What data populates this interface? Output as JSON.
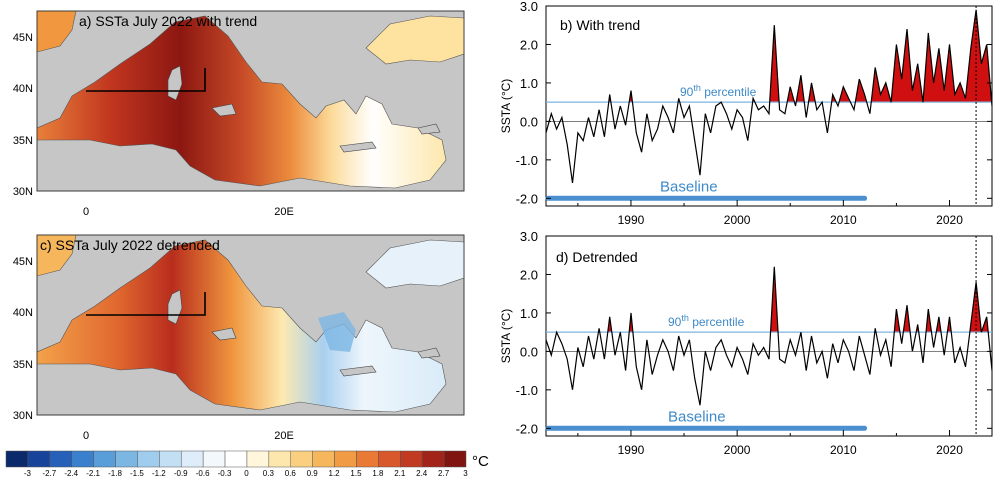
{
  "maps": [
    {
      "id": "a",
      "title": "a) SSTa July 2022 with trend",
      "lat_ticks": [
        "45N",
        "40N",
        "35N",
        "30N"
      ],
      "lon_ticks": [
        "0",
        "20E"
      ]
    },
    {
      "id": "c",
      "title": "c) SSTa July 2022 detrended",
      "lat_ticks": [
        "45N",
        "40N",
        "35N",
        "30N"
      ],
      "lon_ticks": [
        "0",
        "20E"
      ]
    }
  ],
  "colorbar": {
    "unit": "°C",
    "labels": [
      "-3",
      "-2.7",
      "-2.4",
      "-2.1",
      "-1.8",
      "-1.5",
      "-1.2",
      "-0.9",
      "-0.6",
      "-0.3",
      "0",
      "0.3",
      "0.6",
      "0.9",
      "1.2",
      "1.5",
      "1.8",
      "2.1",
      "2.4",
      "2.7",
      "3"
    ],
    "colors": [
      "#0b2a6b",
      "#17449a",
      "#2660b8",
      "#3a80cc",
      "#5a9ed9",
      "#7cb7e4",
      "#a0cdee",
      "#c2dff4",
      "#deedf9",
      "#f3f8fc",
      "#ffffff",
      "#fff6dc",
      "#fde7ac",
      "#fad080",
      "#f6b65c",
      "#f19b45",
      "#e87a36",
      "#d8572b",
      "#c13a22",
      "#a22319",
      "#801410"
    ]
  },
  "colors": {
    "accent_blue": "#4a8fd0",
    "exceed_red": "#d01010",
    "land": "#c6c6c6"
  },
  "chart_data": [
    {
      "type": "line",
      "panel": "b",
      "title": "b)  With trend",
      "ylabel": "SSTA (°C)",
      "xlim": [
        1982,
        2024
      ],
      "ylim": [
        -2.2,
        3.0
      ],
      "yticks": [
        "3.0",
        "2.0",
        "1.0",
        "0.0",
        "-1.0",
        "-2.0"
      ],
      "xticks": [
        "1990",
        "2000",
        "2010",
        "2020"
      ],
      "percentile_label": "90th percentile",
      "percentile_value": 0.5,
      "baseline_label": "Baseline",
      "baseline_period": [
        1982,
        2012
      ],
      "event_marker_x": 2022.5,
      "series": [
        {
          "x": [
            1982,
            1982.5,
            1983,
            1983.5,
            1984,
            1984.5,
            1985,
            1985.5,
            1986,
            1986.5,
            1987,
            1987.5,
            1988,
            1988.5,
            1989,
            1989.5,
            1990,
            1990.5,
            1991,
            1991.5,
            1992,
            1992.5,
            1993,
            1993.5,
            1994,
            1994.5,
            1995,
            1995.5,
            1996,
            1996.5,
            1997,
            1997.5,
            1998,
            1998.5,
            1999,
            1999.5,
            2000,
            2000.5,
            2001,
            2001.5,
            2002,
            2002.5,
            2003,
            2003.5,
            2004,
            2004.5,
            2005,
            2005.5,
            2006,
            2006.5,
            2007,
            2007.5,
            2008,
            2008.5,
            2009,
            2009.5,
            2010,
            2010.5,
            2011,
            2011.5,
            2012,
            2012.5,
            2013,
            2013.5,
            2014,
            2014.5,
            2015,
            2015.5,
            2016,
            2016.5,
            2017,
            2017.5,
            2018,
            2018.5,
            2019,
            2019.5,
            2020,
            2020.5,
            2021,
            2021.5,
            2022,
            2022.5,
            2023,
            2023.5,
            2024
          ],
          "values": [
            -0.3,
            0.2,
            -0.2,
            0.1,
            -0.6,
            -1.6,
            -0.3,
            -0.5,
            0.1,
            -0.4,
            0.3,
            -0.4,
            0.7,
            -0.2,
            0.4,
            -0.1,
            0.8,
            -0.3,
            -0.8,
            0.2,
            -0.5,
            -0.2,
            0.4,
            0.1,
            -0.3,
            0.6,
            0.1,
            0.4,
            -0.5,
            -1.4,
            0.2,
            -0.3,
            0.4,
            0.5,
            0.2,
            -0.2,
            0.3,
            0.1,
            -0.5,
            0.6,
            0.3,
            0.4,
            0.2,
            2.5,
            0.3,
            0.2,
            0.9,
            0.4,
            1.2,
            0.1,
            1.0,
            0.3,
            0.5,
            -0.3,
            0.7,
            0.4,
            0.9,
            0.6,
            0.3,
            1.1,
            0.7,
            0.2,
            1.4,
            0.7,
            1.0,
            0.5,
            2.0,
            1.1,
            2.4,
            0.8,
            1.5,
            0.5,
            2.3,
            1.0,
            1.9,
            0.8,
            2.0,
            0.7,
            1.0,
            0.6,
            1.9,
            2.9,
            1.5,
            2.0,
            0.4
          ]
        }
      ]
    },
    {
      "type": "line",
      "panel": "d",
      "title": "d)  Detrended",
      "ylabel": "SSTA (°C)",
      "xlim": [
        1982,
        2024
      ],
      "ylim": [
        -2.2,
        3.0
      ],
      "yticks": [
        "3.0",
        "2.0",
        "1.0",
        "0.0",
        "-1.0",
        "-2.0"
      ],
      "xticks": [
        "1990",
        "2000",
        "2010",
        "2020"
      ],
      "percentile_label": "90th percentile",
      "percentile_value": 0.5,
      "baseline_label": "Baseline",
      "baseline_period": [
        1982,
        2012
      ],
      "event_marker_x": 2022.5,
      "series": [
        {
          "x": [
            1982,
            1982.5,
            1983,
            1983.5,
            1984,
            1984.5,
            1985,
            1985.5,
            1986,
            1986.5,
            1987,
            1987.5,
            1988,
            1988.5,
            1989,
            1989.5,
            1990,
            1990.5,
            1991,
            1991.5,
            1992,
            1992.5,
            1993,
            1993.5,
            1994,
            1994.5,
            1995,
            1995.5,
            1996,
            1996.5,
            1997,
            1997.5,
            1998,
            1998.5,
            1999,
            1999.5,
            2000,
            2000.5,
            2001,
            2001.5,
            2002,
            2002.5,
            2003,
            2003.5,
            2004,
            2004.5,
            2005,
            2005.5,
            2006,
            2006.5,
            2007,
            2007.5,
            2008,
            2008.5,
            2009,
            2009.5,
            2010,
            2010.5,
            2011,
            2011.5,
            2012,
            2012.5,
            2013,
            2013.5,
            2014,
            2014.5,
            2015,
            2015.5,
            2016,
            2016.5,
            2017,
            2017.5,
            2018,
            2018.5,
            2019,
            2019.5,
            2020,
            2020.5,
            2021,
            2021.5,
            2022,
            2022.5,
            2023,
            2023.5,
            2024
          ],
          "values": [
            0.3,
            -0.1,
            0.5,
            0.2,
            -0.2,
            -1.0,
            0.1,
            -0.4,
            0.4,
            -0.2,
            0.6,
            -0.2,
            0.9,
            -0.1,
            0.5,
            -0.5,
            1.0,
            -0.4,
            -1.0,
            0.3,
            -0.6,
            -0.1,
            0.3,
            0.0,
            -0.5,
            0.4,
            -0.1,
            0.3,
            -0.7,
            -1.4,
            0.0,
            -0.5,
            0.1,
            0.3,
            -0.1,
            -0.4,
            0.1,
            -0.2,
            -0.6,
            0.2,
            -0.1,
            0.1,
            -0.2,
            2.2,
            -0.2,
            -0.3,
            0.3,
            -0.1,
            0.5,
            -0.5,
            0.4,
            -0.3,
            0.0,
            -0.7,
            0.2,
            -0.3,
            0.3,
            0.0,
            -0.5,
            0.4,
            -0.1,
            -0.6,
            0.6,
            -0.1,
            0.3,
            -0.4,
            1.1,
            0.2,
            1.2,
            0.0,
            0.7,
            -0.3,
            1.1,
            0.1,
            0.9,
            -0.1,
            0.9,
            -0.3,
            0.1,
            -0.4,
            0.7,
            1.8,
            0.5,
            0.9,
            -0.5
          ]
        }
      ]
    }
  ]
}
